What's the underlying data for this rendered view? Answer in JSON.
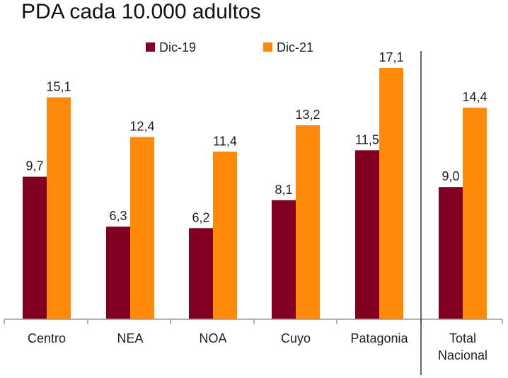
{
  "colors": {
    "dic19": "#820020",
    "dic21": "#FF8A0A",
    "axis": "#999999",
    "divider": "#1F3864",
    "text": "#222222"
  },
  "chart_data": {
    "type": "bar",
    "title": "PDA cada 10.000 adultos",
    "categories": [
      "Centro",
      "NEA",
      "NOA",
      "Cuyo",
      "Patagonia",
      "Total Nacional"
    ],
    "category_lines": [
      [
        "Centro"
      ],
      [
        "NEA"
      ],
      [
        "NOA"
      ],
      [
        "Cuyo"
      ],
      [
        "Patagonia"
      ],
      [
        "Total",
        "Nacional"
      ]
    ],
    "series": [
      {
        "name": "Dic-19",
        "values": [
          9.7,
          6.3,
          6.2,
          8.1,
          11.5,
          9.0
        ],
        "labels": [
          "9,7",
          "6,3",
          "6,2",
          "8,1",
          "11,5",
          "9,0"
        ]
      },
      {
        "name": "Dic-21",
        "values": [
          15.1,
          12.4,
          11.4,
          13.2,
          17.1,
          14.4
        ],
        "labels": [
          "15,1",
          "12,4",
          "11,4",
          "13,2",
          "17,1",
          "14,4"
        ]
      }
    ],
    "ylim": [
      0,
      17.1
    ],
    "legend": "top-center",
    "grid": false,
    "xlabel": "",
    "ylabel": ""
  }
}
